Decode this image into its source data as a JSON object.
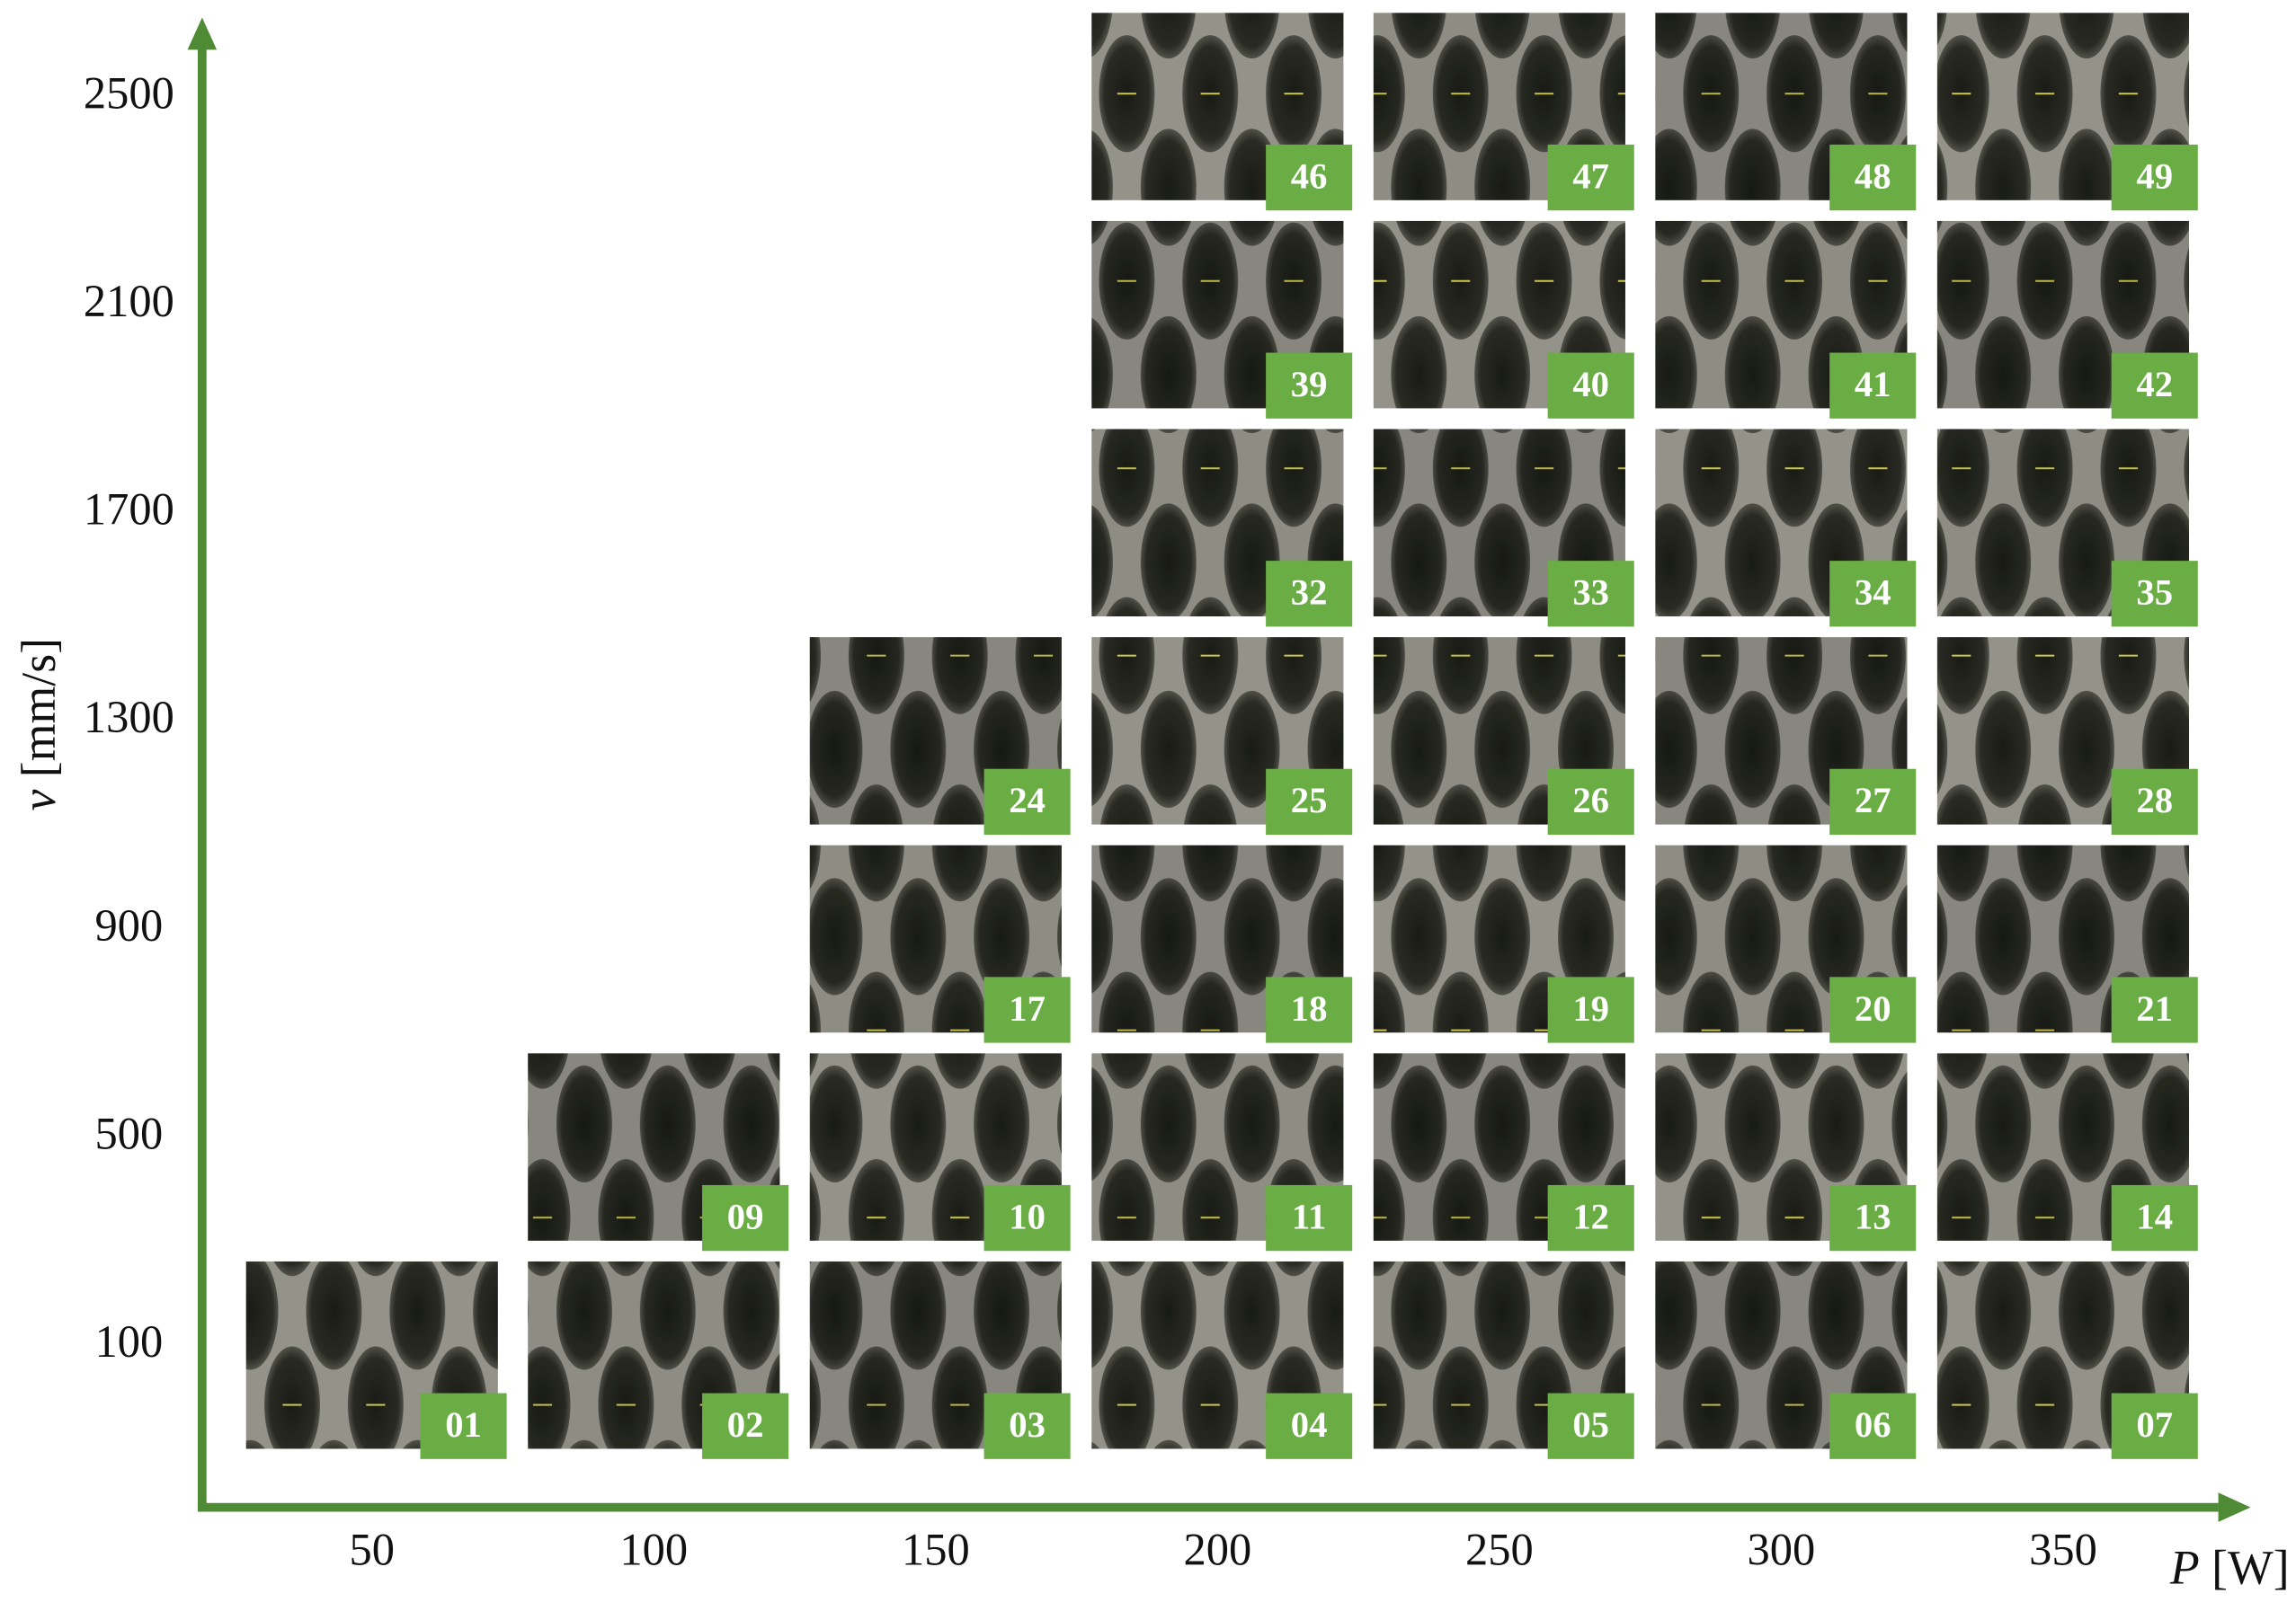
{
  "x_axis": {
    "symbol": "P",
    "unit": "[W]",
    "ticks": [
      50,
      100,
      150,
      200,
      250,
      300,
      350
    ]
  },
  "y_axis": {
    "symbol": "v",
    "unit": "[mm/s]",
    "ticks": [
      100,
      500,
      900,
      1300,
      1700,
      2100,
      2500
    ]
  },
  "tiles": [
    [
      "01",
      "02",
      "03",
      "04",
      "05",
      "06",
      "07"
    ],
    [
      null,
      "09",
      "10",
      "11",
      "12",
      "13",
      "14"
    ],
    [
      null,
      null,
      "17",
      "18",
      "19",
      "20",
      "21"
    ],
    [
      null,
      null,
      "24",
      "25",
      "26",
      "27",
      "28"
    ],
    [
      null,
      null,
      null,
      "32",
      "33",
      "34",
      "35"
    ],
    [
      null,
      null,
      null,
      "39",
      "40",
      "41",
      "42"
    ],
    [
      null,
      null,
      null,
      "46",
      "47",
      "48",
      "49"
    ]
  ]
}
